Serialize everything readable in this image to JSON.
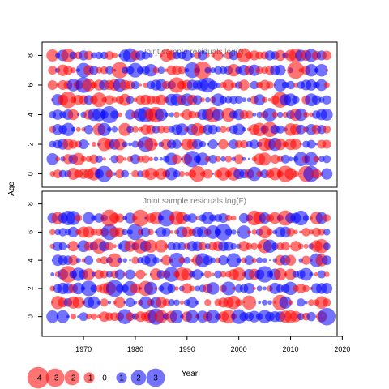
{
  "chart_data": {
    "type": "bubble",
    "ylabel": "Age",
    "xlabel": "Year",
    "xlim": [
      1962,
      2019
    ],
    "xticks": [
      1970,
      1980,
      1990,
      2000,
      2010,
      2020
    ],
    "tick_label_size": "small",
    "note": "",
    "colors": {
      "positive": "#0000ff",
      "negative": "#ff0000",
      "alpha": 0.55,
      "axes": "#000000",
      "title": "#808080"
    },
    "panels": [
      {
        "title": "Joint sample residuals log(N)",
        "ylim": [
          -0.9,
          8.9
        ],
        "yticks": [
          0,
          2,
          4,
          6,
          8
        ],
        "years": [
          1964,
          2017
        ],
        "ages": [
          0,
          1,
          2,
          3,
          4,
          5,
          6,
          7,
          8
        ],
        "seed": 11
      },
      {
        "title": "Joint sample residuals log(F)",
        "ylim": [
          -1.4,
          8.9
        ],
        "yticks": [
          0,
          2,
          4,
          6,
          8
        ],
        "years": [
          1964,
          2017
        ],
        "ages": [
          0,
          1,
          2,
          3,
          4,
          5,
          6,
          7
        ],
        "seed": 29
      }
    ],
    "legend": {
      "values": [
        -4,
        -3,
        -2,
        -1,
        0,
        1,
        2,
        3
      ],
      "labels": [
        "-4",
        "-3",
        "-2",
        "-1",
        "0",
        "1",
        "2",
        "3"
      ]
    }
  }
}
